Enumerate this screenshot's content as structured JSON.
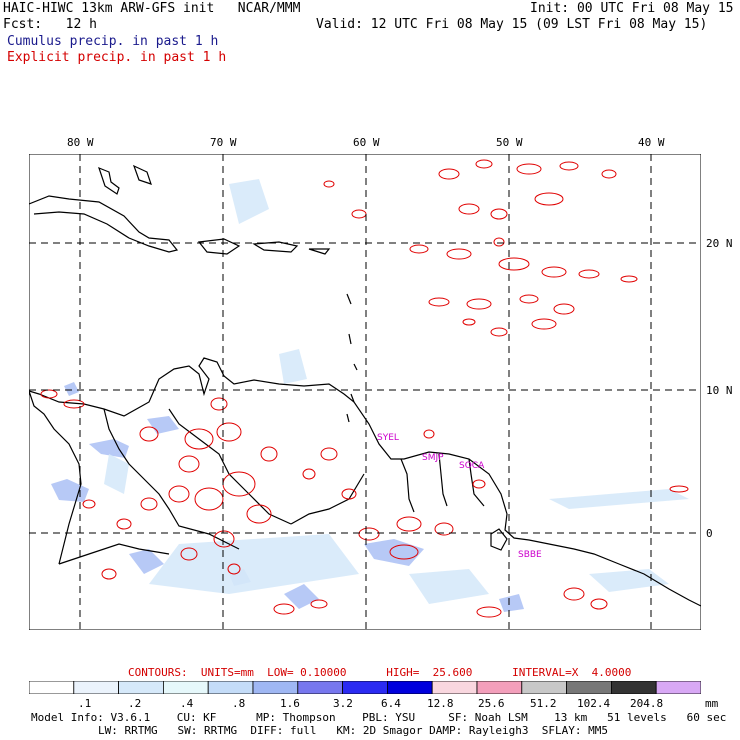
{
  "header": {
    "left_line1": "HAIC-HIWC 13km ARW-GFS init   NCAR/MMM",
    "left_line2": "Fcst:   12 h",
    "right_line1": "Init: 00 UTC Fri 08 May 15",
    "right_line2": "Valid: 12 UTC Fri 08 May 15 (09 LST Fri 08 May 15)",
    "legend_cumulus": "Cumulus precip. in past 1 h",
    "legend_explicit": "Explicit precip. in past 1 h"
  },
  "map": {
    "lon_labels": [
      "80 W",
      "70 W",
      "60 W",
      "50 W",
      "40 W"
    ],
    "lat_labels": [
      "20 N",
      "10 N",
      "0"
    ],
    "stations": [
      "SYEL",
      "SMJP",
      "SOCA",
      "SBBE"
    ],
    "colors": {
      "coast": "#000000",
      "explicit": "#e00000",
      "station": "#cc00cc",
      "grid": "#000000"
    }
  },
  "contour_info": {
    "text": "CONTOURS:  UNITS=mm  LOW= 0.10000      HIGH=  25.600      INTERVAL=X  4.0000"
  },
  "colorbar": {
    "labels": [
      ".1",
      ".2",
      ".4",
      ".8",
      "1.6",
      "3.2",
      "6.4",
      "12.8",
      "25.6",
      "51.2",
      "102.4",
      "204.8"
    ],
    "unit": "mm",
    "colors": [
      "#ffffff",
      "#ebf3fc",
      "#d6e9fa",
      "#e6f8fb",
      "#c4dcf8",
      "#9fb7f3",
      "#7777ee",
      "#2b2bf2",
      "#0000dd",
      "#f9d7df",
      "#f39fbb",
      "#c8c8c8",
      "#777777",
      "#333333",
      "#d8a8f5"
    ]
  },
  "footer": {
    "line1": "Model Info: V3.6.1    CU: KF      MP: Thompson    PBL: YSU     SF: Noah LSM    13 km   51 levels   60 sec",
    "line2": "LW: RRTMG   SW: RRTMG  DIFF: full   KM: 2D Smagor DAMP: Rayleigh3  SFLAY: MM5"
  }
}
